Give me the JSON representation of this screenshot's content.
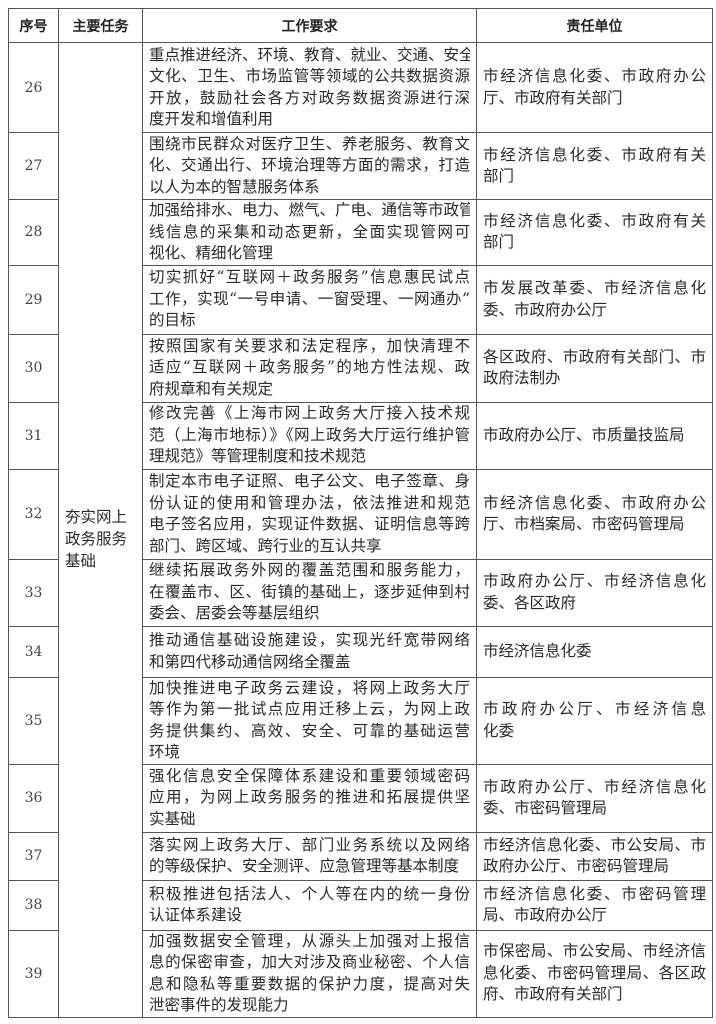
{
  "headers": [
    "序号",
    "主要任务",
    "工作要求",
    "责任单位"
  ],
  "task": [
    "夯实网上",
    "政务服务",
    "基础"
  ],
  "rows": [
    {
      "no": "26",
      "req": [
        "重点推进经济、环境、教育、就业、交通、安全、",
        "文化、卫生、市场监管等领域的公共数据资源",
        "开放，鼓励社会各方对政务数据资源进行深",
        "度开发和增值利用"
      ],
      "unit": [
        "市经济信息化委、市政府办公",
        "厅、市政府有关部门"
      ]
    },
    {
      "no": "27",
      "req": [
        "围绕市民群众对医疗卫生、养老服务、教育文",
        "化、交通出行、环境治理等方面的需求，打造",
        "以人为本的智慧服务体系"
      ],
      "unit": [
        "市经济信息化委、市政府有关",
        "部门"
      ]
    },
    {
      "no": "28",
      "req": [
        "加强给排水、电力、燃气、广电、通信等市政管",
        "线信息的采集和动态更新，全面实现管网可",
        "视化、精细化管理"
      ],
      "unit": [
        "市经济信息化委、市政府有关",
        "部门"
      ]
    },
    {
      "no": "29",
      "req": [
        "切实抓好“互联网＋政务服务”信息惠民试点",
        "工作，实现“一号申请、一窗受理、一网通办”",
        "的目标"
      ],
      "unit": [
        "市发展改革委、市经济信息化",
        "委、市政府办公厅"
      ]
    },
    {
      "no": "30",
      "req": [
        "按照国家有关要求和法定程序，加快清理不",
        "适应“互联网＋政务服务”的地方性法规、政",
        "府规章和有关规定"
      ],
      "unit": [
        "各区政府、市政府有关部门、市",
        "政府法制办"
      ]
    },
    {
      "no": "31",
      "req": [
        "修改完善《上海市网上政务大厅接入技术规",
        "范（上海市地标）》《网上政务大厅运行维护管",
        "理规范》等管理制度和技术规范"
      ],
      "unit": [
        "市政府办公厅、市质量技监局"
      ]
    },
    {
      "no": "32",
      "req": [
        "制定本市电子证照、电子公文、电子签章、身",
        "份认证的使用和管理办法，依法推进和规范",
        "电子签名应用，实现证件数据、证明信息等跨",
        "部门、跨区域、跨行业的互认共享"
      ],
      "unit": [
        "市经济信息化委、市政府办公",
        "厅、市档案局、市密码管理局"
      ]
    },
    {
      "no": "33",
      "req": [
        "继续拓展政务外网的覆盖范围和服务能力，",
        "在覆盖市、区、街镇的基础上，逐步延伸到村",
        "委会、居委会等基层组织"
      ],
      "unit": [
        "市政府办公厅、市经济信息化",
        "委、各区政府"
      ]
    },
    {
      "no": "34",
      "req": [
        "推动通信基础设施建设，实现光纤宽带网络",
        "和第四代移动通信网络全覆盖"
      ],
      "unit": [
        "市经济信息化委"
      ]
    },
    {
      "no": "35",
      "req": [
        "加快推进电子政务云建设，将网上政务大厅",
        "等作为第一批试点应用迁移上云，为网上政",
        "务提供集约、高效、安全、可靠的基础运营",
        "环境"
      ],
      "unit": [
        "市政府办公厅、市经济信息",
        "化委"
      ]
    },
    {
      "no": "36",
      "req": [
        "强化信息安全保障体系建设和重要领域密码",
        "应用，为网上政务服务的推进和拓展提供坚",
        "实基础"
      ],
      "unit": [
        "市政府办公厅、市经济信息化",
        "委、市密码管理局"
      ]
    },
    {
      "no": "37",
      "req": [
        "落实网上政务大厅、部门业务系统以及网络",
        "的等级保护、安全测评、应急管理等基本制度"
      ],
      "unit": [
        "市经济信息化委、市公安局、市",
        "政府办公厅、市密码管理局"
      ]
    },
    {
      "no": "38",
      "req": [
        "积极推进包括法人、个人等在内的统一身份",
        "认证体系建设"
      ],
      "unit": [
        "市经济信息化委、市密码管理",
        "局、市政府办公厅"
      ]
    },
    {
      "no": "39",
      "req": [
        "加强数据安全管理，从源头上加强对上报信",
        "息的保密审查，加大对涉及商业秘密、个人信",
        "息和隐私等重要数据的保护力度，提高对失",
        "泄密事件的发现能力"
      ],
      "unit": [
        "市保密局、市公安局、市经济信",
        "息化委、市密码管理局、各区政",
        "府、市政府有关部门"
      ]
    }
  ]
}
